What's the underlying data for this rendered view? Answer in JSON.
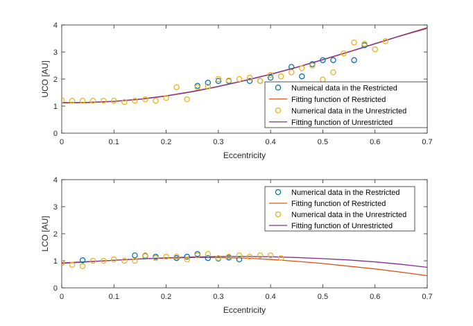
{
  "colors": {
    "restricted_marker": "#0072BD",
    "restricted_fit": "#D95319",
    "unrestricted_marker": "#EDB120",
    "unrestricted_fit": "#7E2F8E",
    "axes": "#262626"
  },
  "chart_data": [
    {
      "type": "scatter",
      "xlabel": "Eccentricity",
      "ylabel": "UCO [AU]",
      "xlim": [
        0,
        0.7
      ],
      "ylim": [
        0,
        4
      ],
      "xticks": [
        "0",
        "0.1",
        "0.2",
        "0.3",
        "0.4",
        "0.5",
        "0.6",
        "0.7"
      ],
      "yticks": [
        "0",
        "1",
        "2",
        "3",
        "4"
      ],
      "grid": false,
      "legend_position": "lower-right",
      "series": [
        {
          "name": "Numeical data in the Restricted",
          "kind": "markers",
          "color": "#0072BD",
          "x": [
            0.26,
            0.28,
            0.3,
            0.32,
            0.36,
            0.38,
            0.4,
            0.44,
            0.46,
            0.48,
            0.5,
            0.52,
            0.56,
            0.58
          ],
          "y": [
            1.75,
            1.87,
            1.93,
            1.93,
            1.93,
            1.93,
            2.05,
            2.45,
            2.1,
            2.55,
            2.7,
            2.7,
            2.7,
            3.25
          ]
        },
        {
          "name": "Fitting function of Restricted",
          "kind": "line",
          "color": "#D95319",
          "x": [
            0,
            0.05,
            0.1,
            0.15,
            0.2,
            0.25,
            0.3,
            0.35,
            0.4,
            0.45,
            0.5,
            0.55,
            0.6,
            0.65,
            0.7
          ],
          "y": [
            1.12,
            1.13,
            1.17,
            1.25,
            1.37,
            1.53,
            1.72,
            1.94,
            2.17,
            2.43,
            2.71,
            3.0,
            3.3,
            3.6,
            3.87
          ]
        },
        {
          "name": "Numerical data in the Unrestricted",
          "kind": "markers",
          "color": "#EDB120",
          "x": [
            0,
            0.02,
            0.04,
            0.06,
            0.08,
            0.1,
            0.12,
            0.14,
            0.16,
            0.18,
            0.2,
            0.22,
            0.24,
            0.26,
            0.28,
            0.3,
            0.32,
            0.34,
            0.36,
            0.38,
            0.4,
            0.42,
            0.44,
            0.46,
            0.48,
            0.5,
            0.52,
            0.54,
            0.56,
            0.58,
            0.6,
            0.62
          ],
          "y": [
            1.22,
            1.2,
            1.2,
            1.2,
            1.2,
            1.2,
            1.15,
            1.2,
            1.25,
            1.2,
            1.3,
            1.7,
            1.25,
            1.7,
            1.72,
            2.0,
            1.95,
            2.0,
            2.05,
            1.93,
            2.15,
            2.1,
            2.25,
            2.4,
            2.5,
            1.98,
            2.25,
            2.95,
            3.35,
            3.3,
            3.1,
            3.4
          ]
        },
        {
          "name": "Fitting function of Unrestricted",
          "kind": "line",
          "color": "#7E2F8E",
          "x": [
            0,
            0.05,
            0.1,
            0.15,
            0.2,
            0.25,
            0.3,
            0.35,
            0.4,
            0.45,
            0.5,
            0.55,
            0.6,
            0.65,
            0.7
          ],
          "y": [
            1.13,
            1.14,
            1.18,
            1.26,
            1.38,
            1.54,
            1.73,
            1.95,
            2.18,
            2.44,
            2.72,
            3.01,
            3.31,
            3.61,
            3.9
          ]
        }
      ]
    },
    {
      "type": "scatter",
      "xlabel": "Eccentricity",
      "ylabel": "LCO [AU]",
      "xlim": [
        0,
        0.7
      ],
      "ylim": [
        0,
        4
      ],
      "xticks": [
        "0",
        "0.1",
        "0.2",
        "0.3",
        "0.4",
        "0.5",
        "0.6",
        "0.7"
      ],
      "yticks": [
        "0",
        "1",
        "2",
        "3",
        "4"
      ],
      "grid": false,
      "legend_position": "top-right",
      "series": [
        {
          "name": "Numerical data in the Restricted",
          "kind": "markers",
          "color": "#0072BD",
          "x": [
            0,
            0.04,
            0.14,
            0.16,
            0.18,
            0.22,
            0.24,
            0.26,
            0.28,
            0.3,
            0.32,
            0.34
          ],
          "y": [
            0.92,
            1.02,
            1.2,
            1.18,
            1.15,
            1.1,
            1.15,
            1.25,
            1.1,
            1.08,
            1.12,
            1.05
          ]
        },
        {
          "name": "Fitting function of Restricted",
          "kind": "line",
          "color": "#D95319",
          "x": [
            0,
            0.05,
            0.1,
            0.15,
            0.2,
            0.25,
            0.3,
            0.35,
            0.4,
            0.45,
            0.5,
            0.55,
            0.6,
            0.65,
            0.7
          ],
          "y": [
            0.9,
            0.96,
            1.02,
            1.07,
            1.1,
            1.12,
            1.12,
            1.1,
            1.05,
            0.98,
            0.9,
            0.8,
            0.7,
            0.58,
            0.45
          ]
        },
        {
          "name": "Numerical data in the Unrestricted",
          "kind": "markers",
          "color": "#EDB120",
          "x": [
            0,
            0.02,
            0.04,
            0.06,
            0.08,
            0.1,
            0.12,
            0.14,
            0.16,
            0.18,
            0.2,
            0.22,
            0.24,
            0.26,
            0.28,
            0.3,
            0.32,
            0.34,
            0.36,
            0.38,
            0.4,
            0.42
          ],
          "y": [
            0.92,
            0.85,
            0.8,
            1.0,
            1.0,
            1.05,
            1.0,
            1.0,
            1.2,
            1.1,
            1.15,
            1.15,
            1.05,
            1.2,
            1.25,
            1.1,
            1.15,
            1.2,
            1.15,
            1.2,
            1.2,
            1.1
          ]
        },
        {
          "name": "Fitting function of Unrestricted",
          "kind": "line",
          "color": "#7E2F8E",
          "x": [
            0,
            0.05,
            0.1,
            0.15,
            0.2,
            0.25,
            0.3,
            0.35,
            0.4,
            0.45,
            0.5,
            0.55,
            0.6,
            0.65,
            0.7
          ],
          "y": [
            0.92,
            0.97,
            1.02,
            1.07,
            1.11,
            1.14,
            1.16,
            1.16,
            1.15,
            1.12,
            1.08,
            1.03,
            0.96,
            0.87,
            0.76
          ]
        }
      ]
    }
  ]
}
